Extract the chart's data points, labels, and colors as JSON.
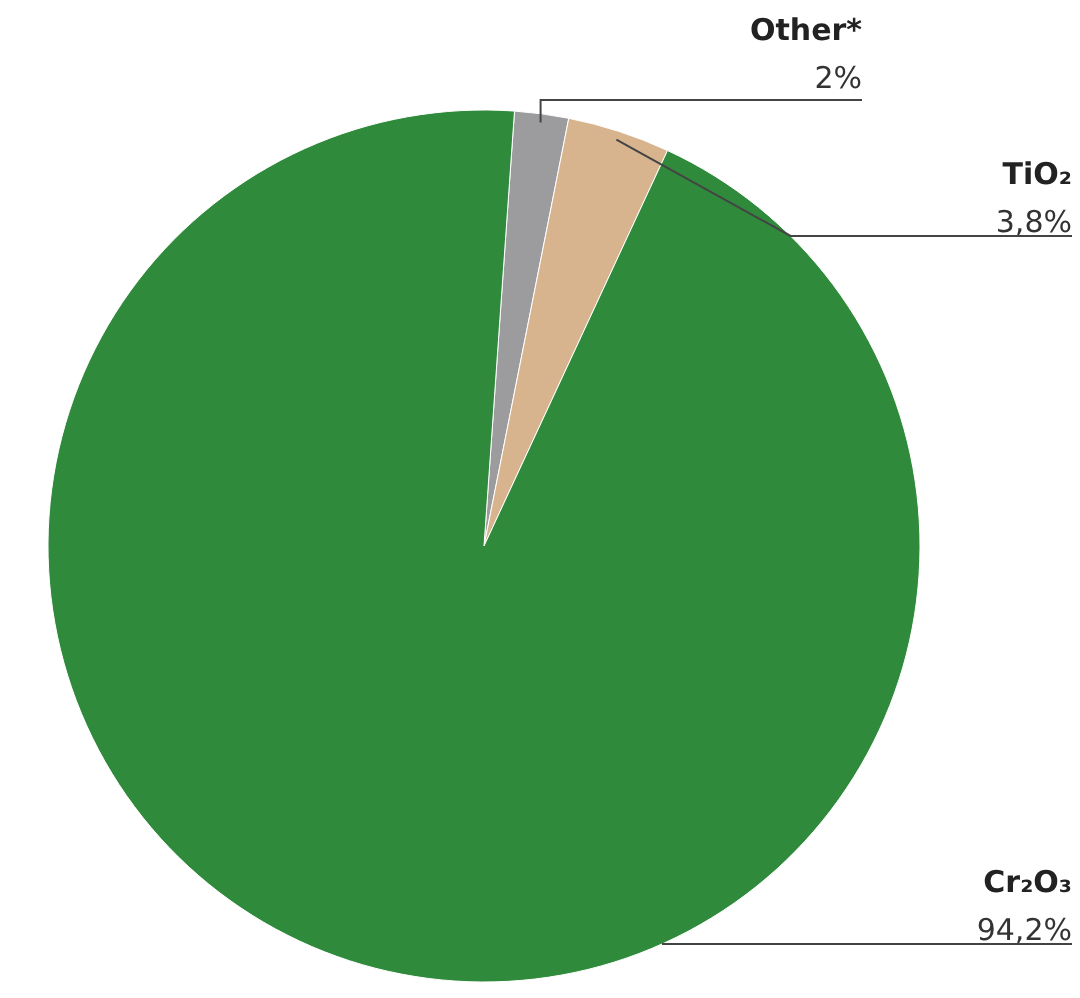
{
  "chart_data": {
    "type": "pie",
    "categories": [
      "Other*",
      "TiO₂",
      "Cr₂O₃"
    ],
    "values": [
      2,
      3.8,
      94.2
    ],
    "value_labels": [
      "2%",
      "3,8%",
      "94,2%"
    ],
    "colors": [
      "#9c9c9e",
      "#d8b48e",
      "#2f8a3c"
    ]
  }
}
